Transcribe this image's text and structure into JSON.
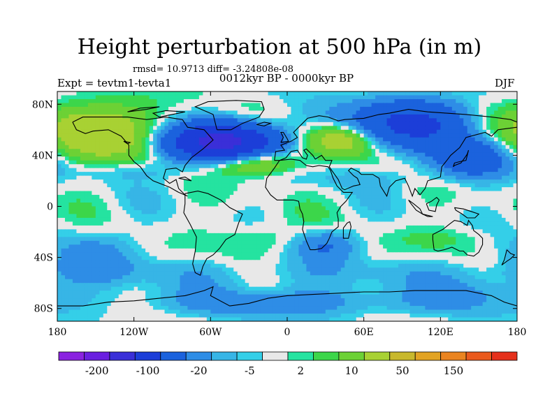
{
  "chart_data": {
    "type": "contour_map",
    "title": "Height perturbation at 500 hPa (in m)",
    "stats_text": "rmsd= 10.9713 diff= -3.24808e-08",
    "subtitle": "0012kyr BP - 0000kyr BP",
    "left_label": "Expt = tevtm1-tevta1",
    "right_label": "DJF",
    "x_ticks": [
      "180",
      "120W",
      "60W",
      "0",
      "60E",
      "120E",
      "180"
    ],
    "x_values": [
      -180,
      -120,
      -60,
      0,
      60,
      120,
      180
    ],
    "y_ticks": [
      "80N",
      "40N",
      "0",
      "40S",
      "80S"
    ],
    "y_values": [
      80,
      40,
      0,
      -40,
      -80
    ],
    "xlim": [
      -180,
      180
    ],
    "ylim": [
      -90,
      90
    ],
    "colorbar": {
      "colors": [
        "#8a22e0",
        "#6a1fe0",
        "#3a2fd8",
        "#1c3ed8",
        "#1b62dd",
        "#2e8de6",
        "#37b5e6",
        "#34cfe8",
        "#e8e8e8",
        "#25e3a0",
        "#3cd64a",
        "#6cd135",
        "#a8d133",
        "#c8b82c",
        "#e2a323",
        "#ea8420",
        "#ea5a1d",
        "#e5301b"
      ],
      "labels": [
        "-200",
        "-100",
        "-20",
        "-5",
        "2",
        "10",
        "50",
        "150"
      ],
      "label_positions": [
        1.5,
        3.5,
        5.5,
        7.5,
        9.5,
        11.5,
        13.5,
        15.5
      ]
    },
    "anomalies": [
      {
        "lon": -150,
        "lat": 58,
        "value": 40,
        "rx": 40,
        "ry": 22
      },
      {
        "lon": -50,
        "lat": 50,
        "value": -120,
        "rx": 40,
        "ry": 14
      },
      {
        "lon": -30,
        "lat": 35,
        "value": 35,
        "rx": 35,
        "ry": 10
      },
      {
        "lon": 40,
        "lat": 52,
        "value": 35,
        "rx": 28,
        "ry": 12
      },
      {
        "lon": 95,
        "lat": 65,
        "value": -60,
        "rx": 45,
        "ry": 18
      },
      {
        "lon": 145,
        "lat": 38,
        "value": -40,
        "rx": 30,
        "ry": 15
      },
      {
        "lon": 60,
        "lat": 22,
        "value": -5,
        "rx": 60,
        "ry": 8
      },
      {
        "lon": -120,
        "lat": 28,
        "value": -8,
        "rx": 50,
        "ry": 8
      },
      {
        "lon": -150,
        "lat": -38,
        "value": -12,
        "rx": 35,
        "ry": 20
      },
      {
        "lon": -20,
        "lat": -25,
        "value": 8,
        "rx": 35,
        "ry": 12
      },
      {
        "lon": 30,
        "lat": -30,
        "value": -20,
        "rx": 25,
        "ry": 12
      },
      {
        "lon": 130,
        "lat": -25,
        "value": 6,
        "rx": 40,
        "ry": 10
      },
      {
        "lon": 0,
        "lat": -75,
        "value": -15,
        "rx": 120,
        "ry": 12
      },
      {
        "lon": 150,
        "lat": -68,
        "value": -10,
        "rx": 40,
        "ry": 14
      }
    ]
  }
}
